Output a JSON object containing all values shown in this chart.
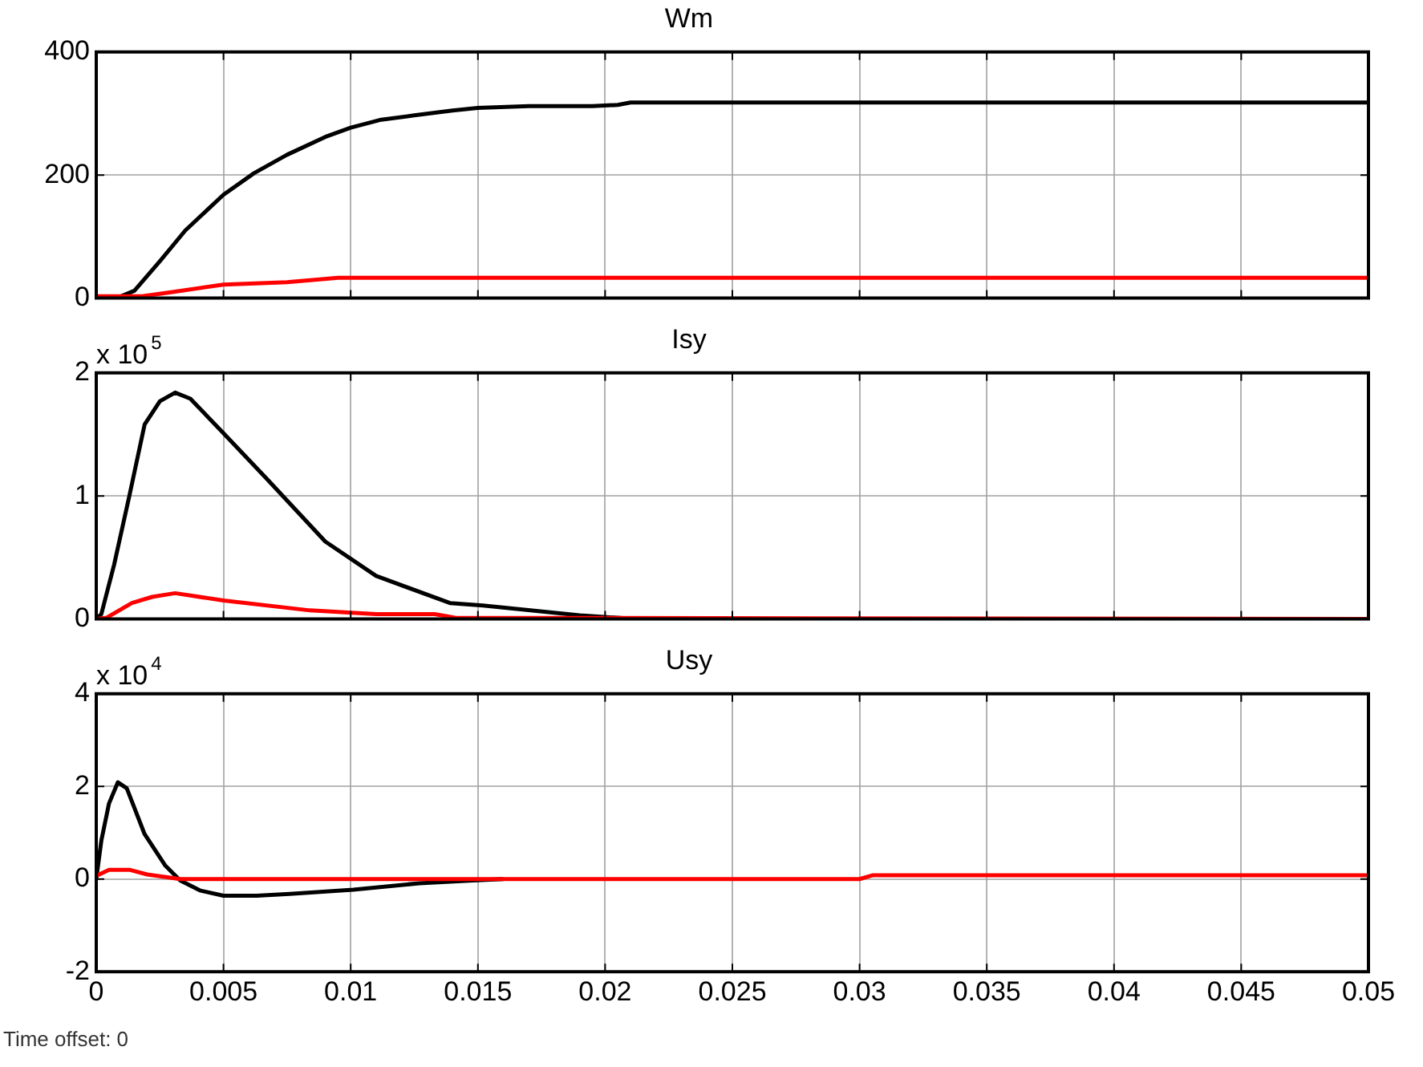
{
  "chart_data": [
    {
      "type": "line",
      "title": "Wm",
      "xlim": [
        0,
        0.05
      ],
      "xticks": [
        0,
        0.005,
        0.01,
        0.015,
        0.02,
        0.025,
        0.03,
        0.035,
        0.04,
        0.045,
        0.05
      ],
      "ylim": [
        0,
        400
      ],
      "yticks": [
        0,
        200,
        400
      ],
      "grid": true,
      "tick_labels": "y",
      "series": [
        {
          "color": "#000000",
          "x": [
            0,
            0.0008,
            0.0015,
            0.0025,
            0.0035,
            0.005,
            0.0062,
            0.0075,
            0.009,
            0.01,
            0.0112,
            0.0125,
            0.014,
            0.015,
            0.017,
            0.0195,
            0.0205,
            0.021,
            0.05
          ],
          "values": [
            0,
            0,
            12,
            60,
            110,
            168,
            203,
            233,
            262,
            277,
            290,
            297,
            305,
            309,
            312,
            312,
            314,
            318,
            318
          ]
        },
        {
          "color": "#ff0000",
          "x": [
            0,
            0.0018,
            0.003,
            0.005,
            0.0075,
            0.0095,
            0.05
          ],
          "values": [
            3,
            3,
            10,
            22,
            26,
            33,
            33
          ]
        }
      ]
    },
    {
      "type": "line",
      "title": "Isy",
      "annotations": [
        "x 10$^{5}$"
      ],
      "xlim": [
        0,
        0.05
      ],
      "xticks": [
        0,
        0.005,
        0.01,
        0.015,
        0.02,
        0.025,
        0.03,
        0.035,
        0.04,
        0.045,
        0.05
      ],
      "ylim": [
        0,
        2
      ],
      "yticks": [
        0,
        1,
        2
      ],
      "grid": true,
      "tick_labels": "y",
      "series": [
        {
          "color": "#000000",
          "x": [
            0,
            0.0002,
            0.0007,
            0.0013,
            0.0019,
            0.0025,
            0.0031,
            0.0037,
            0.005,
            0.0067,
            0.009,
            0.011,
            0.0139,
            0.0152,
            0.019,
            0.0212,
            0.05
          ],
          "values": [
            0,
            0.04,
            0.44,
            1.0,
            1.58,
            1.77,
            1.84,
            1.79,
            1.51,
            1.14,
            0.63,
            0.35,
            0.13,
            0.11,
            0.03,
            0,
            0
          ]
        },
        {
          "color": "#ff0000",
          "x": [
            0,
            0.0004,
            0.0014,
            0.0022,
            0.0031,
            0.005,
            0.0084,
            0.011,
            0.0133,
            0.0141,
            0.05
          ],
          "values": [
            0,
            0.01,
            0.13,
            0.18,
            0.21,
            0.15,
            0.07,
            0.04,
            0.04,
            0.01,
            0
          ]
        }
      ]
    },
    {
      "type": "line",
      "title": "Usy",
      "annotations": [
        "x 10$^{4}$",
        "Time offset:  0"
      ],
      "xlim": [
        0,
        0.05
      ],
      "xticks": [
        0,
        0.005,
        0.01,
        0.015,
        0.02,
        0.025,
        0.03,
        0.035,
        0.04,
        0.045,
        0.05
      ],
      "ylim": [
        -2,
        4
      ],
      "yticks": [
        -2,
        0,
        2,
        4
      ],
      "grid": true,
      "series": [
        {
          "color": "#000000",
          "x": [
            0,
            0.0002,
            0.0005,
            0.00085,
            0.0012,
            0.0019,
            0.0027,
            0.0033,
            0.0041,
            0.005,
            0.0063,
            0.0076,
            0.0101,
            0.0127,
            0.0148,
            0.016
          ],
          "values": [
            0,
            0.83,
            1.63,
            2.09,
            1.96,
            0.97,
            0.3,
            -0.03,
            -0.25,
            -0.36,
            -0.36,
            -0.32,
            -0.23,
            -0.09,
            -0.03,
            0
          ]
        },
        {
          "color": "#ff0000",
          "x": [
            0,
            0.0005,
            0.0013,
            0.002,
            0.0029,
            0.0033,
            0.03,
            0.0305,
            0.05
          ],
          "values": [
            0.07,
            0.2,
            0.2,
            0.1,
            0.03,
            0,
            0,
            0.08,
            0.08
          ]
        }
      ]
    }
  ]
}
